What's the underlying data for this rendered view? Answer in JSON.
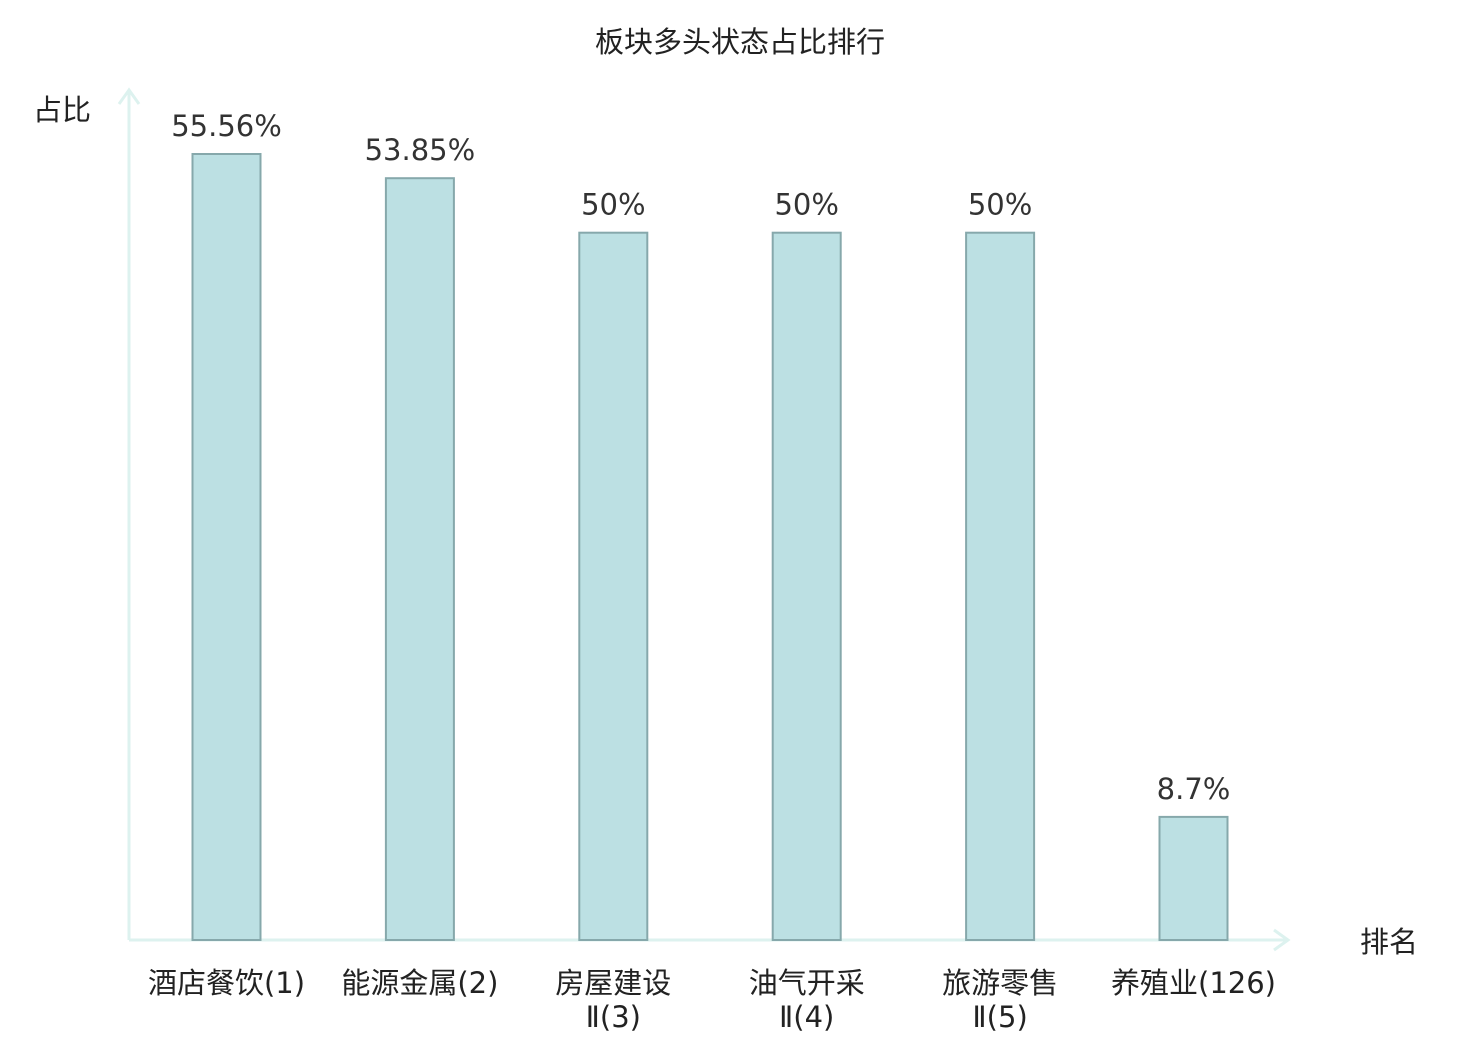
{
  "chart_data": {
    "type": "bar",
    "title": "板块多头状态占比排行",
    "ylabel": "占比",
    "xlabel": "排名",
    "ylim": [
      0,
      60
    ],
    "grid": false,
    "categories": [
      [
        "酒店餐饮(1)"
      ],
      [
        "能源金属(2)"
      ],
      [
        "房屋建设",
        "Ⅱ(3)"
      ],
      [
        "油气开采",
        "Ⅱ(4)"
      ],
      [
        "旅游零售",
        "Ⅱ(5)"
      ],
      [
        "养殖业(126)"
      ]
    ],
    "values": [
      55.56,
      53.85,
      50,
      50,
      50,
      8.7
    ],
    "value_labels": [
      "55.56%",
      "53.85%",
      "50%",
      "50%",
      "50%",
      "8.7%"
    ],
    "highlight_index": 5
  },
  "colors": {
    "bar_fill": "#bce0e3",
    "bar_stroke": "#86a8ab",
    "axis": "#ddf2ef",
    "highlight_label": "#dd1111"
  }
}
